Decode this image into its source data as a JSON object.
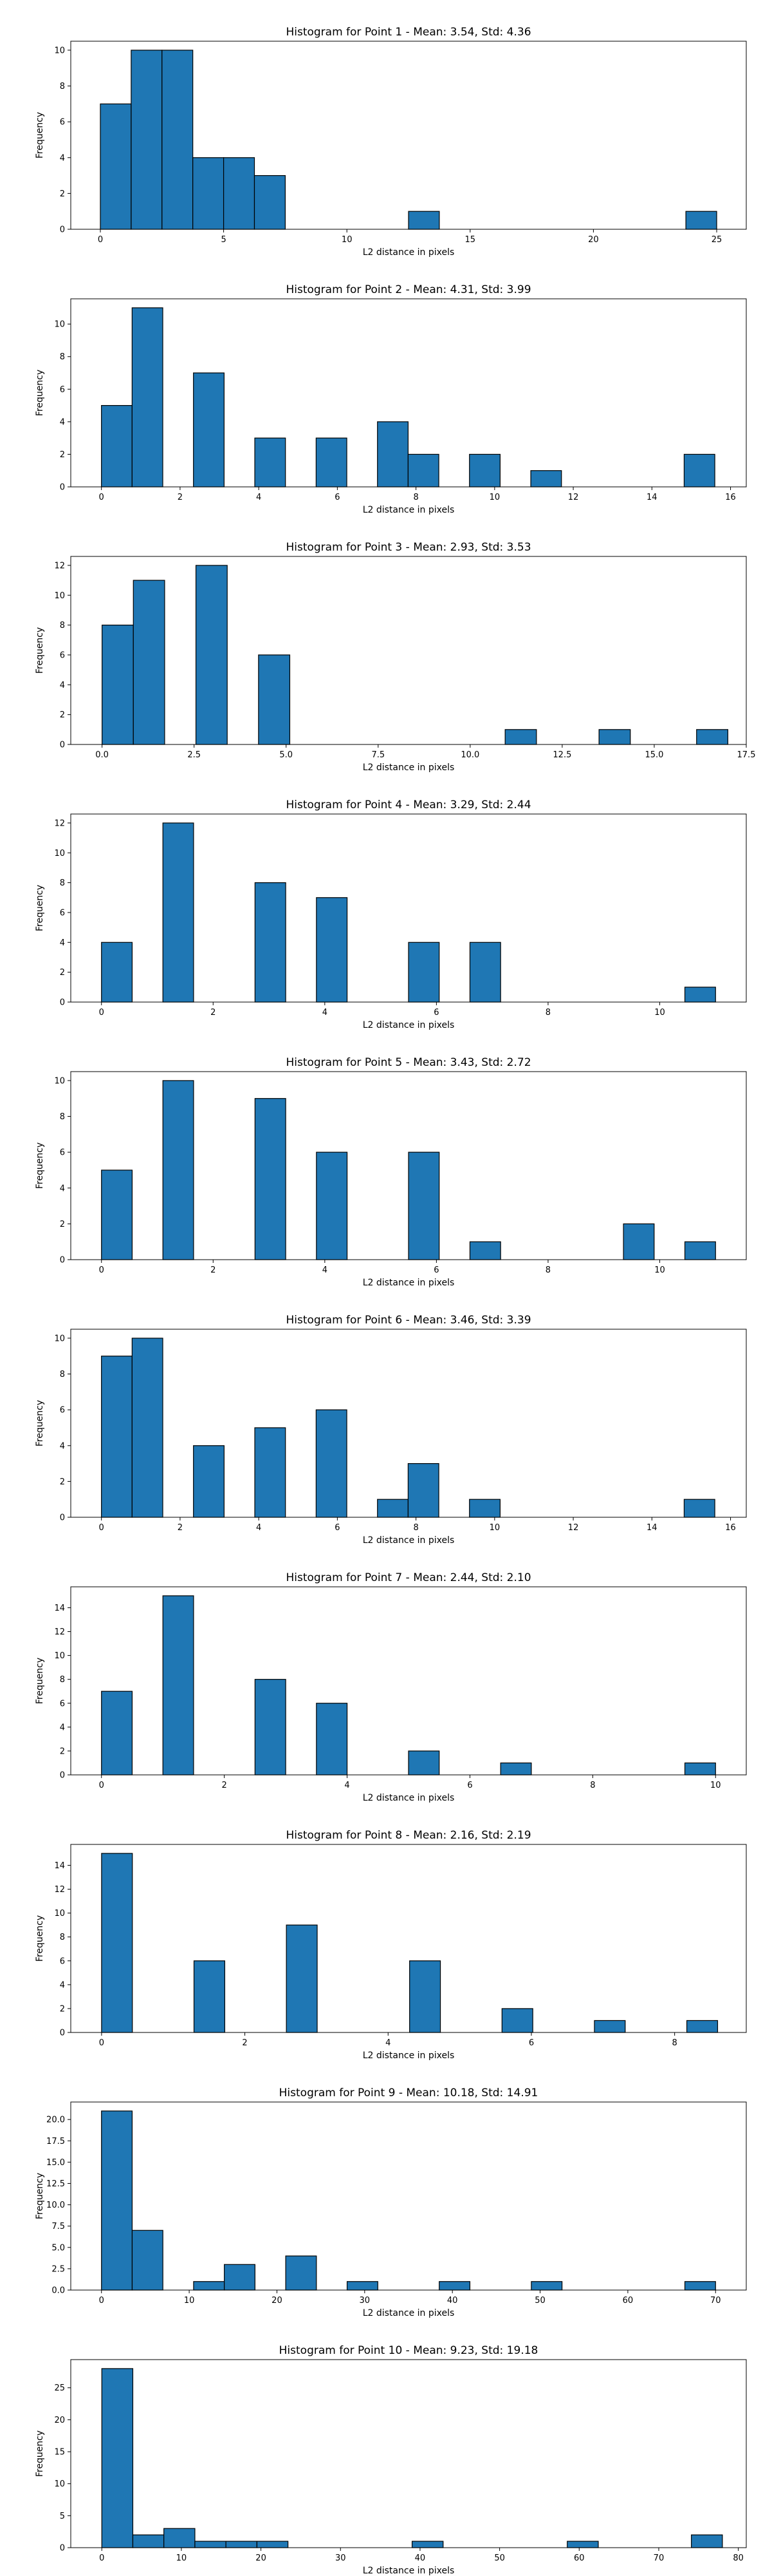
{
  "colors": {
    "bar_fill": "#1f77b4",
    "bar_edge": "#000000",
    "background": "#ffffff"
  },
  "chart_data": [
    {
      "type": "bar",
      "title": "Histogram for Point 1 - Mean: 3.54, Std: 4.36",
      "xlabel": "L2 distance in pixels",
      "ylabel": "Frequency",
      "xlim": [
        -1.2,
        26.2
      ],
      "ylim": [
        0,
        10.5
      ],
      "xticks": [
        0,
        5,
        10,
        15,
        20,
        25
      ],
      "xtick_labels": [
        "0",
        "5",
        "10",
        "15",
        "20",
        "25"
      ],
      "yticks": [
        0,
        2,
        4,
        6,
        8,
        10
      ],
      "ytick_labels": [
        "0",
        "2",
        "4",
        "6",
        "8",
        "10"
      ],
      "bin_width": 1.25,
      "bins": [
        [
          0,
          7
        ],
        [
          1.25,
          10
        ],
        [
          2.5,
          10
        ],
        [
          3.75,
          4
        ],
        [
          5,
          4
        ],
        [
          6.25,
          3
        ],
        [
          12.5,
          1
        ],
        [
          23.75,
          1
        ]
      ]
    },
    {
      "type": "bar",
      "title": "Histogram for Point 2 - Mean: 4.31, Std: 3.99",
      "xlabel": "L2 distance in pixels",
      "ylabel": "Frequency",
      "xlim": [
        -0.78,
        16.4
      ],
      "ylim": [
        0,
        11.55
      ],
      "xticks": [
        0,
        2,
        4,
        6,
        8,
        10,
        12,
        14,
        16
      ],
      "xtick_labels": [
        "0",
        "2",
        "4",
        "6",
        "8",
        "10",
        "12",
        "14",
        "16"
      ],
      "yticks": [
        0,
        2,
        4,
        6,
        8,
        10
      ],
      "ytick_labels": [
        "0",
        "2",
        "4",
        "6",
        "8",
        "10"
      ],
      "bin_width": 0.78,
      "bins": [
        [
          0,
          5
        ],
        [
          0.78,
          11
        ],
        [
          2.34,
          7
        ],
        [
          3.9,
          3
        ],
        [
          5.46,
          3
        ],
        [
          7.02,
          4
        ],
        [
          7.8,
          2
        ],
        [
          9.36,
          2
        ],
        [
          10.92,
          1
        ],
        [
          14.82,
          2
        ]
      ]
    },
    {
      "type": "bar",
      "title": "Histogram for Point 3 - Mean: 2.93, Std: 3.53",
      "xlabel": "L2 distance in pixels",
      "ylabel": "Frequency",
      "xlim": [
        -0.85,
        17.5
      ],
      "ylim": [
        0,
        12.6
      ],
      "xticks": [
        0,
        2.5,
        5,
        7.5,
        10,
        12.5,
        15,
        17.5
      ],
      "xtick_labels": [
        "0.0",
        "2.5",
        "5.0",
        "7.5",
        "10.0",
        "12.5",
        "15.0",
        "17.5"
      ],
      "yticks": [
        0,
        2,
        4,
        6,
        8,
        10,
        12
      ],
      "ytick_labels": [
        "0",
        "2",
        "4",
        "6",
        "8",
        "10",
        "12"
      ],
      "bin_width": 0.85,
      "bins": [
        [
          0,
          8
        ],
        [
          0.85,
          11
        ],
        [
          2.55,
          12
        ],
        [
          4.25,
          6
        ],
        [
          10.95,
          1
        ],
        [
          13.5,
          1
        ],
        [
          16.15,
          1
        ]
      ]
    },
    {
      "type": "bar",
      "title": "Histogram for Point 4 - Mean: 3.29, Std: 2.44",
      "xlabel": "L2 distance in pixels",
      "ylabel": "Frequency",
      "xlim": [
        -0.55,
        11.55
      ],
      "ylim": [
        0,
        12.6
      ],
      "xticks": [
        0,
        2,
        4,
        6,
        8,
        10
      ],
      "xtick_labels": [
        "0",
        "2",
        "4",
        "6",
        "8",
        "10"
      ],
      "yticks": [
        0,
        2,
        4,
        6,
        8,
        10,
        12
      ],
      "ytick_labels": [
        "0",
        "2",
        "4",
        "6",
        "8",
        "10",
        "12"
      ],
      "bin_width": 0.55,
      "bins": [
        [
          0,
          4
        ],
        [
          1.1,
          12
        ],
        [
          2.75,
          8
        ],
        [
          3.85,
          7
        ],
        [
          5.5,
          4
        ],
        [
          6.6,
          4
        ],
        [
          10.45,
          1
        ]
      ]
    },
    {
      "type": "bar",
      "title": "Histogram for Point 5 - Mean: 3.43, Std: 2.72",
      "xlabel": "L2 distance in pixels",
      "ylabel": "Frequency",
      "xlim": [
        -0.55,
        11.55
      ],
      "ylim": [
        0,
        10.5
      ],
      "xticks": [
        0,
        2,
        4,
        6,
        8,
        10
      ],
      "xtick_labels": [
        "0",
        "2",
        "4",
        "6",
        "8",
        "10"
      ],
      "yticks": [
        0,
        2,
        4,
        6,
        8,
        10
      ],
      "ytick_labels": [
        "0",
        "2",
        "4",
        "6",
        "8",
        "10"
      ],
      "bin_width": 0.55,
      "bins": [
        [
          0,
          5
        ],
        [
          1.1,
          10
        ],
        [
          2.75,
          9
        ],
        [
          3.85,
          6
        ],
        [
          5.5,
          6
        ],
        [
          6.6,
          1
        ],
        [
          9.35,
          2
        ],
        [
          10.45,
          1
        ]
      ]
    },
    {
      "type": "bar",
      "title": "Histogram for Point 6 - Mean: 3.46, Std: 3.39",
      "xlabel": "L2 distance in pixels",
      "ylabel": "Frequency",
      "xlim": [
        -0.78,
        16.4
      ],
      "ylim": [
        0,
        10.5
      ],
      "xticks": [
        0,
        2,
        4,
        6,
        8,
        10,
        12,
        14,
        16
      ],
      "xtick_labels": [
        "0",
        "2",
        "4",
        "6",
        "8",
        "10",
        "12",
        "14",
        "16"
      ],
      "yticks": [
        0,
        2,
        4,
        6,
        8,
        10
      ],
      "ytick_labels": [
        "0",
        "2",
        "4",
        "6",
        "8",
        "10"
      ],
      "bin_width": 0.78,
      "bins": [
        [
          0,
          9
        ],
        [
          0.78,
          10
        ],
        [
          2.34,
          4
        ],
        [
          3.9,
          5
        ],
        [
          5.46,
          6
        ],
        [
          7.02,
          1
        ],
        [
          7.8,
          3
        ],
        [
          9.36,
          1
        ],
        [
          14.82,
          1
        ]
      ]
    },
    {
      "type": "bar",
      "title": "Histogram for Point 7 - Mean: 2.44, Std: 2.10",
      "xlabel": "L2 distance in pixels",
      "ylabel": "Frequency",
      "xlim": [
        -0.5,
        10.5
      ],
      "ylim": [
        0,
        15.75
      ],
      "xticks": [
        0,
        2,
        4,
        6,
        8,
        10
      ],
      "xtick_labels": [
        "0",
        "2",
        "4",
        "6",
        "8",
        "10"
      ],
      "yticks": [
        0,
        2,
        4,
        6,
        8,
        10,
        12,
        14
      ],
      "ytick_labels": [
        "0",
        "2",
        "4",
        "6",
        "8",
        "10",
        "12",
        "14"
      ],
      "bin_width": 0.5,
      "bins": [
        [
          0,
          7
        ],
        [
          1,
          15
        ],
        [
          2.5,
          8
        ],
        [
          3.5,
          6
        ],
        [
          5,
          2
        ],
        [
          6.5,
          1
        ],
        [
          9.5,
          1
        ]
      ]
    },
    {
      "type": "bar",
      "title": "Histogram for Point 8 - Mean: 2.16, Std: 2.19",
      "xlabel": "L2 distance in pixels",
      "ylabel": "Frequency",
      "xlim": [
        -0.43,
        9.0
      ],
      "ylim": [
        0,
        15.75
      ],
      "xticks": [
        0,
        2,
        4,
        6,
        8
      ],
      "xtick_labels": [
        "0",
        "2",
        "4",
        "6",
        "8"
      ],
      "yticks": [
        0,
        2,
        4,
        6,
        8,
        10,
        12,
        14
      ],
      "ytick_labels": [
        "0",
        "2",
        "4",
        "6",
        "8",
        "10",
        "12",
        "14"
      ],
      "bin_width": 0.43,
      "bins": [
        [
          0,
          15
        ],
        [
          1.29,
          6
        ],
        [
          2.58,
          9
        ],
        [
          4.3,
          6
        ],
        [
          5.59,
          2
        ],
        [
          6.88,
          1
        ],
        [
          8.17,
          1
        ]
      ]
    },
    {
      "type": "bar",
      "title": "Histogram for Point 9 - Mean: 10.18, Std: 14.91",
      "xlabel": "L2 distance in pixels",
      "ylabel": "Frequency",
      "xlim": [
        -3.5,
        73.5
      ],
      "ylim": [
        0,
        22.05
      ],
      "xticks": [
        0,
        10,
        20,
        30,
        40,
        50,
        60,
        70
      ],
      "xtick_labels": [
        "0",
        "10",
        "20",
        "30",
        "40",
        "50",
        "60",
        "70"
      ],
      "yticks": [
        0,
        2.5,
        5,
        7.5,
        10,
        12.5,
        15,
        17.5,
        20
      ],
      "ytick_labels": [
        "0.0",
        "2.5",
        "5.0",
        "7.5",
        "10.0",
        "12.5",
        "15.0",
        "17.5",
        "20.0"
      ],
      "bin_width": 3.5,
      "bins": [
        [
          0,
          21
        ],
        [
          3.5,
          7
        ],
        [
          10.5,
          1
        ],
        [
          14,
          3
        ],
        [
          21,
          4
        ],
        [
          28,
          1
        ],
        [
          38.5,
          1
        ],
        [
          49,
          1
        ],
        [
          66.5,
          1
        ]
      ]
    },
    {
      "type": "bar",
      "title": "Histogram for Point 10 - Mean: 9.23, Std: 19.18",
      "xlabel": "L2 distance in pixels",
      "ylabel": "Frequency",
      "xlim": [
        -3.9,
        81.0
      ],
      "ylim": [
        0,
        29.4
      ],
      "xticks": [
        0,
        10,
        20,
        30,
        40,
        50,
        60,
        70,
        80
      ],
      "xtick_labels": [
        "0",
        "10",
        "20",
        "30",
        "40",
        "50",
        "60",
        "70",
        "80"
      ],
      "yticks": [
        0,
        5,
        10,
        15,
        20,
        25
      ],
      "ytick_labels": [
        "0",
        "5",
        "10",
        "15",
        "20",
        "25"
      ],
      "bin_width": 3.9,
      "bins": [
        [
          0,
          28
        ],
        [
          3.9,
          2
        ],
        [
          7.8,
          3
        ],
        [
          11.7,
          1
        ],
        [
          15.6,
          1
        ],
        [
          19.5,
          1
        ],
        [
          39,
          1
        ],
        [
          58.5,
          1
        ],
        [
          74.1,
          2
        ]
      ]
    }
  ]
}
